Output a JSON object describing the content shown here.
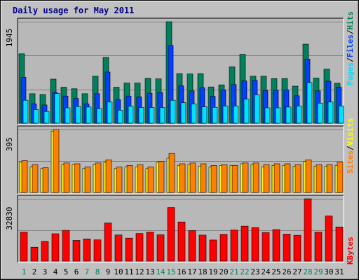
{
  "title": "Daily usage for May 2011",
  "colors": {
    "hits": "#00805c",
    "files": "#0040ff",
    "pages": "#00e0ff",
    "visits": "#ffff00",
    "sites": "#ff8000",
    "kbytes": "#ff0000",
    "title": "#00008b",
    "background": "#c0c0c0",
    "panel": "#b8b8b8"
  },
  "chart_data": [
    {
      "type": "bar",
      "title": "Daily usage for May 2011",
      "ymax_label": "1945",
      "ylim": [
        0,
        1945
      ],
      "legend": [
        "Pages",
        "Files",
        "Hits"
      ],
      "legend_colors": [
        "#00e0ff",
        "#0040ff",
        "#00805c"
      ],
      "categories": [
        "1",
        "2",
        "3",
        "4",
        "5",
        "6",
        "7",
        "8",
        "9",
        "10",
        "11",
        "12",
        "13",
        "14",
        "15",
        "16",
        "17",
        "18",
        "19",
        "20",
        "21",
        "22",
        "23",
        "24",
        "25",
        "26",
        "27",
        "28",
        "29",
        "30",
        "31"
      ],
      "series": [
        {
          "name": "Hits",
          "values": [
            1330,
            565,
            550,
            845,
            690,
            660,
            565,
            900,
            1260,
            690,
            770,
            770,
            860,
            850,
            1945,
            950,
            945,
            950,
            695,
            735,
            1080,
            1320,
            900,
            900,
            855,
            855,
            710,
            1515,
            865,
            1035,
            765
          ]
        },
        {
          "name": "Files",
          "values": [
            880,
            370,
            350,
            590,
            520,
            475,
            370,
            565,
            980,
            450,
            520,
            505,
            575,
            590,
            1490,
            715,
            620,
            680,
            515,
            635,
            740,
            810,
            820,
            625,
            630,
            635,
            525,
            1230,
            620,
            805,
            690
          ]
        },
        {
          "name": "Pages",
          "values": [
            440,
            260,
            225,
            570,
            295,
            320,
            310,
            280,
            405,
            250,
            325,
            300,
            300,
            300,
            440,
            395,
            370,
            315,
            305,
            330,
            330,
            460,
            545,
            295,
            295,
            310,
            330,
            780,
            385,
            405,
            330
          ]
        }
      ]
    },
    {
      "type": "bar",
      "ymax_label": "395",
      "ylim": [
        0,
        395
      ],
      "legend": [
        "Sites",
        "Visits"
      ],
      "legend_colors": [
        "#ff8000",
        "#ffff00"
      ],
      "categories": [
        "1",
        "2",
        "3",
        "4",
        "5",
        "6",
        "7",
        "8",
        "9",
        "10",
        "11",
        "12",
        "13",
        "14",
        "15",
        "16",
        "17",
        "18",
        "19",
        "20",
        "21",
        "22",
        "23",
        "24",
        "25",
        "26",
        "27",
        "28",
        "29",
        "30",
        "31"
      ],
      "series": [
        {
          "name": "Visits",
          "values": [
            190,
            160,
            150,
            385,
            175,
            175,
            150,
            175,
            190,
            150,
            160,
            160,
            150,
            190,
            215,
            170,
            175,
            165,
            160,
            170,
            170,
            180,
            175,
            160,
            170,
            170,
            165,
            195,
            165,
            165,
            170
          ]
        },
        {
          "name": "Sites",
          "values": [
            200,
            175,
            155,
            395,
            185,
            180,
            160,
            185,
            205,
            160,
            170,
            175,
            160,
            195,
            245,
            180,
            185,
            180,
            170,
            175,
            170,
            185,
            185,
            175,
            180,
            180,
            175,
            205,
            175,
            175,
            190
          ]
        }
      ]
    },
    {
      "type": "bar",
      "ymax_label": "32830",
      "ylim": [
        0,
        32830
      ],
      "legend": [
        "KBytes"
      ],
      "legend_colors": [
        "#ff0000"
      ],
      "categories": [
        "1",
        "2",
        "3",
        "4",
        "5",
        "6",
        "7",
        "8",
        "9",
        "10",
        "11",
        "12",
        "13",
        "14",
        "15",
        "16",
        "17",
        "18",
        "19",
        "20",
        "21",
        "22",
        "23",
        "24",
        "25",
        "26",
        "27",
        "28",
        "29",
        "30",
        "31"
      ],
      "series": [
        {
          "name": "KBytes",
          "values": [
            15300,
            7300,
            10400,
            14400,
            16200,
            10900,
            11700,
            11200,
            20100,
            13800,
            12100,
            14500,
            15300,
            13900,
            28200,
            20600,
            16100,
            13700,
            11100,
            14100,
            16400,
            18400,
            17700,
            15100,
            16600,
            14200,
            13600,
            32830,
            15300,
            23800,
            18000
          ]
        }
      ]
    }
  ],
  "x_axis": {
    "labels": [
      "1",
      "2",
      "3",
      "4",
      "5",
      "6",
      "7",
      "8",
      "9",
      "10",
      "11",
      "12",
      "13",
      "14",
      "15",
      "16",
      "17",
      "18",
      "19",
      "20",
      "21",
      "22",
      "23",
      "24",
      "25",
      "26",
      "27",
      "28",
      "29",
      "30",
      "31"
    ],
    "weekend_days": [
      "1",
      "7",
      "8",
      "14",
      "15",
      "21",
      "22",
      "28",
      "29"
    ]
  }
}
